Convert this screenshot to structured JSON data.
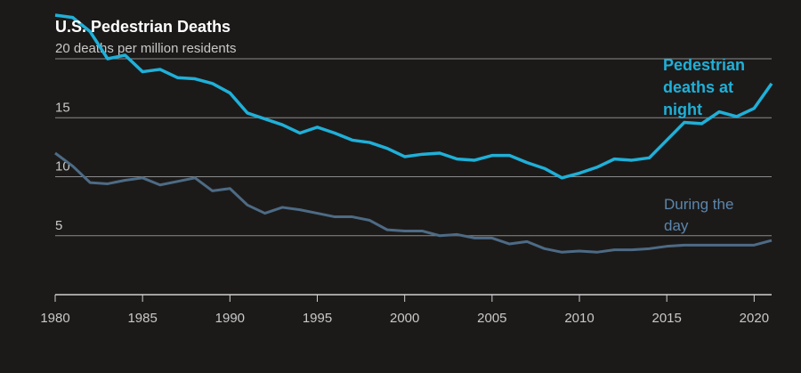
{
  "chart_data": {
    "type": "line",
    "title": "U.S. Pedestrian Deaths",
    "x": [
      1980,
      1981,
      1982,
      1983,
      1984,
      1985,
      1986,
      1987,
      1988,
      1989,
      1990,
      1991,
      1992,
      1993,
      1994,
      1995,
      1996,
      1997,
      1998,
      1999,
      2000,
      2001,
      2002,
      2003,
      2004,
      2005,
      2006,
      2007,
      2008,
      2009,
      2010,
      2011,
      2012,
      2013,
      2014,
      2015,
      2016,
      2017,
      2018,
      2019,
      2020,
      2021
    ],
    "series": [
      {
        "name": "Pedestrian deaths at night",
        "color": "#1fb0d8",
        "values": [
          23.7,
          23.5,
          22.3,
          20.0,
          20.3,
          18.9,
          19.1,
          18.4,
          18.3,
          17.9,
          17.1,
          15.4,
          14.9,
          14.4,
          13.7,
          14.2,
          13.7,
          13.1,
          12.9,
          12.4,
          11.7,
          11.9,
          12.0,
          11.5,
          11.4,
          11.8,
          11.8,
          11.2,
          10.7,
          9.9,
          10.3,
          10.8,
          11.5,
          11.4,
          11.6,
          13.1,
          14.6,
          14.5,
          15.5,
          15.1,
          15.8,
          17.9
        ]
      },
      {
        "name": "During the day",
        "color": "#4d6b85",
        "values": [
          12.0,
          10.9,
          9.5,
          9.4,
          9.7,
          9.9,
          9.3,
          9.6,
          9.9,
          8.8,
          9.0,
          7.6,
          6.9,
          7.4,
          7.2,
          6.9,
          6.6,
          6.6,
          6.3,
          5.5,
          5.4,
          5.4,
          5.0,
          5.1,
          4.8,
          4.8,
          4.3,
          4.5,
          3.9,
          3.6,
          3.7,
          3.6,
          3.8,
          3.8,
          3.9,
          4.1,
          4.2,
          4.2,
          4.2,
          4.2,
          4.2,
          4.6
        ]
      }
    ],
    "xlim": [
      1980,
      2021
    ],
    "xticks": [
      1980,
      1985,
      1990,
      1995,
      2000,
      2005,
      2010,
      2015,
      2020
    ],
    "ylim": [
      0,
      24
    ],
    "yticks": [
      5,
      10,
      15,
      {
        "value": 20,
        "label": "20 deaths per million residents"
      }
    ],
    "grid": true
  }
}
